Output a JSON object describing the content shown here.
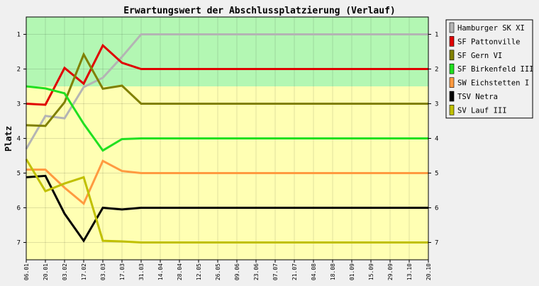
{
  "chart_data": {
    "type": "line",
    "title": "Erwartungswert der Abschlussplatzierung (Verlauf)",
    "ylabel": "Platz",
    "xlabel": "",
    "ylim": [
      0.5,
      7.5
    ],
    "y_inverted": true,
    "yticks": [
      "1",
      "2",
      "3",
      "4",
      "5",
      "6",
      "7"
    ],
    "x": [
      "06.01",
      "20.01",
      "03.02",
      "17.02",
      "03.03",
      "17.03",
      "31.03",
      "14.04",
      "28.04",
      "12.05",
      "26.05",
      "09.06",
      "23.06",
      "07.07",
      "21.07",
      "04.08",
      "18.08",
      "01.09",
      "15.09",
      "29.09",
      "13.10",
      "20.10"
    ],
    "bands": [
      {
        "from": 0.5,
        "to": 2.5,
        "color": "#b3f7b3"
      },
      {
        "from": 2.5,
        "to": 7.5,
        "color": "#ffffb3"
      }
    ],
    "legend_position": "right",
    "grid": true,
    "series": [
      {
        "name": "Hamburger SK XI",
        "color": "#b4b4b4",
        "values": [
          4.3,
          3.35,
          3.42,
          2.52,
          2.25,
          1.65,
          1.0,
          1.0,
          1.0,
          1.0,
          1.0,
          1.0,
          1.0,
          1.0,
          1.0,
          1.0,
          1.0,
          1.0,
          1.0,
          1.0,
          1.0,
          1.0
        ]
      },
      {
        "name": "SF Pattonville",
        "color": "#e00000",
        "values": [
          3.0,
          3.03,
          1.97,
          2.42,
          1.32,
          1.82,
          2.0,
          2.0,
          2.0,
          2.0,
          2.0,
          2.0,
          2.0,
          2.0,
          2.0,
          2.0,
          2.0,
          2.0,
          2.0,
          2.0,
          2.0,
          2.0
        ]
      },
      {
        "name": "SF Gern VI",
        "color": "#808000",
        "values": [
          3.62,
          3.64,
          2.96,
          1.58,
          2.57,
          2.48,
          3.0,
          3.0,
          3.0,
          3.0,
          3.0,
          3.0,
          3.0,
          3.0,
          3.0,
          3.0,
          3.0,
          3.0,
          3.0,
          3.0,
          3.0,
          3.0
        ]
      },
      {
        "name": "SF Birkenfeld III",
        "color": "#20e020",
        "values": [
          2.5,
          2.56,
          2.7,
          3.58,
          4.35,
          4.02,
          4.0,
          4.0,
          4.0,
          4.0,
          4.0,
          4.0,
          4.0,
          4.0,
          4.0,
          4.0,
          4.0,
          4.0,
          4.0,
          4.0,
          4.0,
          4.0
        ]
      },
      {
        "name": "SW Eichstetten I",
        "color": "#ff9a40",
        "values": [
          4.9,
          4.9,
          5.42,
          5.88,
          4.65,
          4.94,
          5.0,
          5.0,
          5.0,
          5.0,
          5.0,
          5.0,
          5.0,
          5.0,
          5.0,
          5.0,
          5.0,
          5.0,
          5.0,
          5.0,
          5.0,
          5.0
        ]
      },
      {
        "name": "TSV Netra",
        "color": "#000000",
        "values": [
          5.12,
          5.08,
          6.17,
          6.95,
          6.0,
          6.05,
          6.0,
          6.0,
          6.0,
          6.0,
          6.0,
          6.0,
          6.0,
          6.0,
          6.0,
          6.0,
          6.0,
          6.0,
          6.0,
          6.0,
          6.0,
          6.0
        ]
      },
      {
        "name": "SV Lauf III",
        "color": "#c0c000",
        "values": [
          4.6,
          5.52,
          5.3,
          5.12,
          6.95,
          6.97,
          7.0,
          7.0,
          7.0,
          7.0,
          7.0,
          7.0,
          7.0,
          7.0,
          7.0,
          7.0,
          7.0,
          7.0,
          7.0,
          7.0,
          7.0,
          7.0
        ]
      }
    ]
  }
}
